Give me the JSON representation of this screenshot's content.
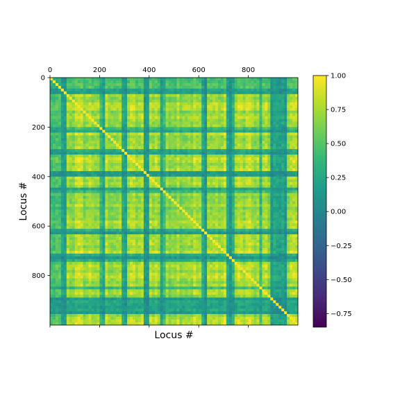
{
  "chart_data": {
    "type": "heatmap",
    "title": "",
    "xlabel": "Locus #",
    "ylabel": "Locus #",
    "n": 1000,
    "x_axis_position": "top",
    "x_ticks": [
      0,
      200,
      400,
      600,
      800
    ],
    "y_ticks": [
      0,
      200,
      400,
      600,
      800
    ],
    "xlim": [
      0,
      1000
    ],
    "ylim": [
      0,
      1000
    ],
    "colormap": "viridis",
    "colorbar": {
      "vmin": -0.85,
      "vmax": 1.0,
      "ticks": [
        1.0,
        0.75,
        0.5,
        0.25,
        0.0,
        -0.25,
        -0.5,
        -0.75
      ],
      "tick_labels": [
        "1.00",
        "0.75",
        "0.50",
        "0.25",
        "0.00",
        "−0.25",
        "−0.50",
        "−0.75"
      ]
    },
    "grid": false,
    "description_values": {
      "diagonal": 1.0,
      "typical_range": [
        0.0,
        1.0
      ],
      "low_bands_loci_approx": [
        15,
        55,
        210,
        300,
        385,
        455,
        625,
        720,
        735,
        850,
        900,
        925,
        945
      ]
    }
  },
  "colors": {
    "viridis_stops": [
      "#440154",
      "#482878",
      "#3e4989",
      "#31688e",
      "#26828e",
      "#1f9e89",
      "#35b779",
      "#6ece58",
      "#b5de2b",
      "#fde725"
    ]
  }
}
